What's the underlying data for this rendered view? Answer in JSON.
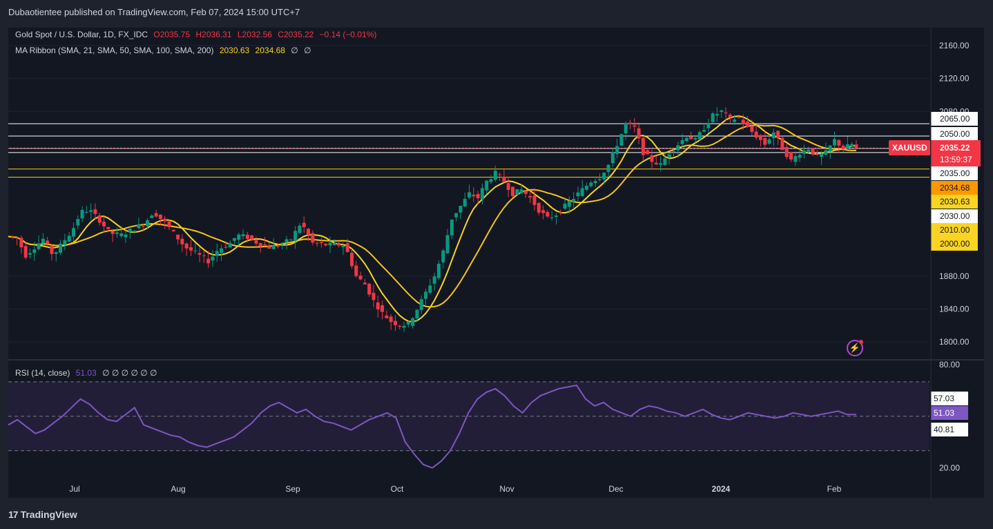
{
  "header": {
    "publish_line": "Dubaotientee published on TradingView.com, Feb 07, 2024 15:00 UTC+7"
  },
  "legend": {
    "symbol": "Gold Spot / U.S. Dollar, 1D, FX_IDC",
    "open": "O2035.75",
    "high": "H2036.31",
    "low": "L2032.56",
    "close": "C2035.22",
    "change": "−0.14 (−0.01%)",
    "ma_label": "MA Ribbon (SMA, 21, SMA, 50, SMA, 100, SMA, 200)",
    "ma_v1": "2030.63",
    "ma_v2": "2034.68",
    "ma_v3": "∅",
    "ma_v4": "∅",
    "rsi_label": "RSI (14, close)",
    "rsi_value": "51.03",
    "rsi_empty": "∅ ∅ ∅ ∅ ∅ ∅"
  },
  "branding": {
    "name": "TradingView"
  },
  "colors": {
    "background": "#1e222d",
    "pane": "#131722",
    "up": "#089981",
    "down": "#f23645",
    "ma_fast": "#f9d423",
    "ma_slow": "#f5c518",
    "rsi_line": "#7e57c2",
    "white_line": "#ffffff",
    "yellow_line": "#f9d423"
  },
  "chart_data": {
    "type": "candlestick",
    "symbol": "XAUUSD",
    "price_axis": {
      "ticks": [
        1800,
        1840,
        1880,
        2080,
        2120,
        2160
      ],
      "range": [
        1780,
        2180
      ]
    },
    "x_axis": {
      "labels": [
        "Jul",
        "Aug",
        "Sep",
        "Oct",
        "Nov",
        "Dec",
        "2024",
        "Feb"
      ]
    },
    "price_tags": [
      {
        "text": "2065.00",
        "value": 2065,
        "bg": "#ffffff",
        "fg": "#131722"
      },
      {
        "text": "2050.00",
        "value": 2050,
        "bg": "#ffffff",
        "fg": "#131722"
      },
      {
        "text": "2035.00",
        "value": 2035,
        "bg": "#ffffff",
        "fg": "#131722"
      },
      {
        "text": "2034.68",
        "value": 2034.68,
        "bg": "#ff9800",
        "fg": "#131722"
      },
      {
        "text": "2030.63",
        "value": 2030.63,
        "bg": "#f9d423",
        "fg": "#131722"
      },
      {
        "text": "2030.00",
        "value": 2030,
        "bg": "#ffffff",
        "fg": "#131722"
      },
      {
        "text": "2010.00",
        "value": 2010,
        "bg": "#f9d423",
        "fg": "#131722"
      },
      {
        "text": "2000.00",
        "value": 2000,
        "bg": "#f9d423",
        "fg": "#131722"
      }
    ],
    "current": {
      "label": "XAUUSD",
      "price": "2035.22",
      "countdown": "13:59:37"
    },
    "horizontal_levels": [
      {
        "value": 2065,
        "color": "white"
      },
      {
        "value": 2050,
        "color": "white"
      },
      {
        "value": 2035,
        "color": "white"
      },
      {
        "value": 2030,
        "color": "white"
      },
      {
        "value": 2010,
        "color": "yellow"
      },
      {
        "value": 2000,
        "color": "yellow"
      }
    ],
    "close_path": [
      [
        0,
        1928
      ],
      [
        6,
        1926
      ],
      [
        12,
        1905
      ],
      [
        18,
        1915
      ],
      [
        24,
        1925
      ],
      [
        31,
        1905
      ],
      [
        38,
        1922
      ],
      [
        44,
        1935
      ],
      [
        50,
        1958
      ],
      [
        56,
        1960
      ],
      [
        62,
        1950
      ],
      [
        70,
        1932
      ],
      [
        78,
        1930
      ],
      [
        86,
        1937
      ],
      [
        94,
        1944
      ],
      [
        100,
        1958
      ],
      [
        108,
        1945
      ],
      [
        115,
        1930
      ],
      [
        122,
        1915
      ],
      [
        130,
        1907
      ],
      [
        138,
        1898
      ],
      [
        145,
        1913
      ],
      [
        152,
        1918
      ],
      [
        158,
        1930
      ],
      [
        165,
        1927
      ],
      [
        172,
        1920
      ],
      [
        180,
        1915
      ],
      [
        188,
        1918
      ],
      [
        195,
        1925
      ],
      [
        202,
        1945
      ],
      [
        210,
        1920
      ],
      [
        218,
        1918
      ],
      [
        225,
        1918
      ],
      [
        232,
        1918
      ],
      [
        240,
        1880
      ],
      [
        246,
        1870
      ],
      [
        252,
        1850
      ],
      [
        258,
        1835
      ],
      [
        264,
        1825
      ],
      [
        270,
        1820
      ],
      [
        276,
        1822
      ],
      [
        282,
        1840
      ],
      [
        288,
        1860
      ],
      [
        294,
        1880
      ],
      [
        300,
        1910
      ],
      [
        306,
        1950
      ],
      [
        312,
        1965
      ],
      [
        318,
        1980
      ],
      [
        324,
        1975
      ],
      [
        330,
        1995
      ],
      [
        336,
        2005
      ],
      [
        342,
        1995
      ],
      [
        348,
        1980
      ],
      [
        354,
        1985
      ],
      [
        360,
        1975
      ],
      [
        366,
        1960
      ],
      [
        372,
        1950
      ],
      [
        378,
        1955
      ],
      [
        384,
        1965
      ],
      [
        390,
        1975
      ],
      [
        396,
        1985
      ],
      [
        402,
        1995
      ],
      [
        408,
        2000
      ],
      [
        414,
        2015
      ],
      [
        420,
        2040
      ],
      [
        426,
        2065
      ],
      [
        432,
        2060
      ],
      [
        438,
        2030
      ],
      [
        444,
        2020
      ],
      [
        450,
        2015
      ],
      [
        456,
        2030
      ],
      [
        462,
        2040
      ],
      [
        468,
        2050
      ],
      [
        474,
        2045
      ],
      [
        480,
        2060
      ],
      [
        486,
        2075
      ],
      [
        492,
        2080
      ],
      [
        498,
        2070
      ],
      [
        504,
        2072
      ],
      [
        510,
        2060
      ],
      [
        516,
        2050
      ],
      [
        522,
        2040
      ],
      [
        528,
        2055
      ],
      [
        534,
        2035
      ],
      [
        540,
        2020
      ],
      [
        546,
        2030
      ],
      [
        552,
        2035
      ],
      [
        558,
        2025
      ],
      [
        564,
        2030
      ],
      [
        570,
        2045
      ],
      [
        576,
        2035
      ],
      [
        582,
        2040
      ],
      [
        585,
        2035
      ]
    ],
    "rsi": {
      "ticks": [
        20,
        80
      ],
      "levels": [
        30,
        70,
        50
      ],
      "range": [
        15,
        82
      ],
      "tags": [
        "57.03",
        "51.03",
        "40.81"
      ],
      "values": [
        45,
        48,
        44,
        40,
        42,
        46,
        50,
        55,
        60,
        57,
        52,
        48,
        47,
        51,
        55,
        45,
        43,
        41,
        39,
        38,
        35,
        33,
        32,
        34,
        36,
        38,
        42,
        46,
        52,
        56,
        58,
        55,
        52,
        54,
        50,
        47,
        46,
        44,
        42,
        45,
        48,
        50,
        52,
        49,
        35,
        28,
        22,
        20,
        24,
        30,
        40,
        52,
        60,
        64,
        66,
        62,
        56,
        52,
        58,
        62,
        64,
        66,
        67,
        68,
        60,
        56,
        58,
        54,
        52,
        50,
        54,
        56,
        55,
        53,
        52,
        50,
        52,
        54,
        51,
        49,
        48,
        50,
        52,
        51,
        50,
        49,
        50,
        52,
        51,
        50,
        51,
        52,
        53,
        51,
        51
      ]
    }
  }
}
